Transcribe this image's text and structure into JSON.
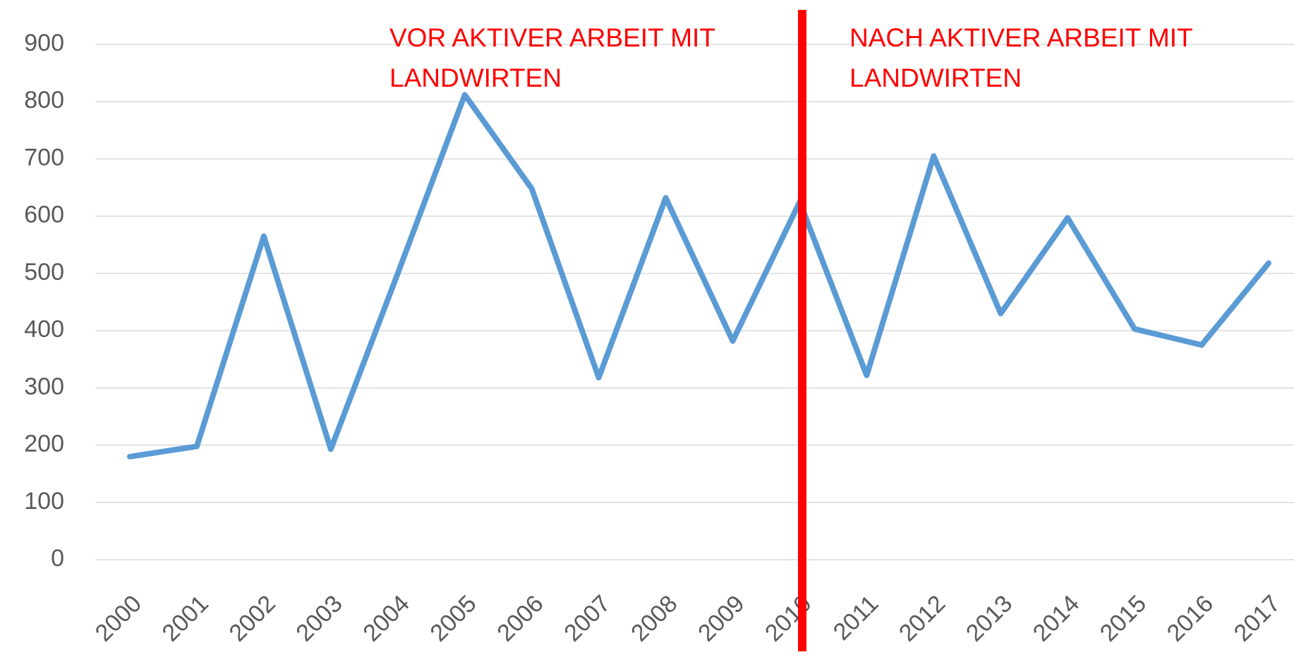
{
  "chart_data": {
    "type": "line",
    "categories": [
      "2000",
      "2001",
      "2002",
      "2003",
      "2004",
      "2005",
      "2006",
      "2007",
      "2008",
      "2009",
      "2010",
      "2011",
      "2012",
      "2013",
      "2014",
      "2015",
      "2016",
      "2017"
    ],
    "series": [
      {
        "color": "#5b9bd5",
        "values": [
          180,
          198,
          565,
          193,
          500,
          812,
          648,
          318,
          632,
          382,
          625,
          322,
          705,
          430,
          597,
          403,
          375,
          518
        ]
      }
    ],
    "ylim": [
      0,
      900
    ],
    "yticks": [
      0,
      100,
      200,
      300,
      400,
      500,
      600,
      700,
      800,
      900
    ],
    "grid": true,
    "annotations": [
      [
        "VOR AKTIVER ARBEIT MIT",
        "LANDWIRTEN"
      ],
      [
        "NACH AKTIVER ARBEIT MIT",
        "LANDWIRTEN"
      ]
    ],
    "annotation_color": "#ff0000"
  }
}
